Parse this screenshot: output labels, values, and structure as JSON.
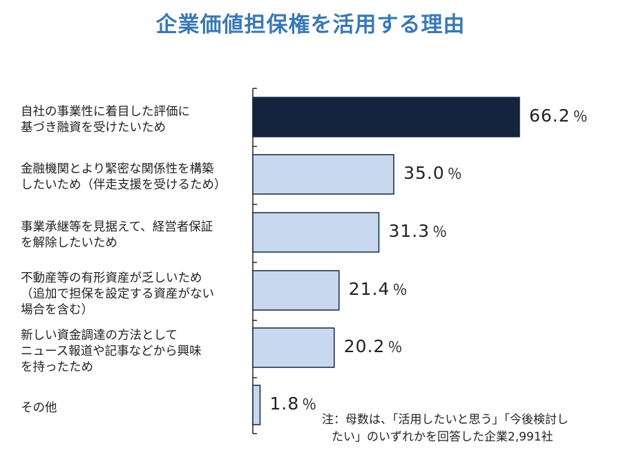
{
  "title": "企業価値担保権を活用する理由",
  "note": {
    "line1": "注：母数は、「活用したいと思う」「今後検討し",
    "line2": "たい」のいずれかを回答した企業2,991社"
  },
  "colors": {
    "title": "#3a78b5",
    "highlight_bar": "#14243f",
    "bar": "#c8d8ef",
    "bar_border": "#14243f"
  },
  "chart_data": {
    "type": "bar",
    "orientation": "horizontal",
    "title": "企業価値担保権を活用する理由",
    "unit": "%",
    "categories": [
      "自社の事業性に着目した評価に\n基づき融資を受けたいため",
      "金融機関とより緊密な関係性を構築\nしたいため（伴走支援を受けるため）",
      "事業承継等を見据えて、経営者保証\nを解除したいため",
      "不動産等の有形資産が乏しいため\n（追加で担保を設定する資産がない\n場合を含む）",
      "新しい資金調達の方法として\nニュース報道や記事などから興味\nを持ったため",
      "その他"
    ],
    "values": [
      66.2,
      35.0,
      31.3,
      21.4,
      20.2,
      1.8
    ],
    "value_labels": [
      "66.2",
      "35.0",
      "31.3",
      "21.4",
      "20.2",
      "1.8"
    ],
    "pct_symbol": "％",
    "highlight_index": 0,
    "xlim": [
      0,
      66.2
    ],
    "grid": false,
    "legend": "none"
  }
}
